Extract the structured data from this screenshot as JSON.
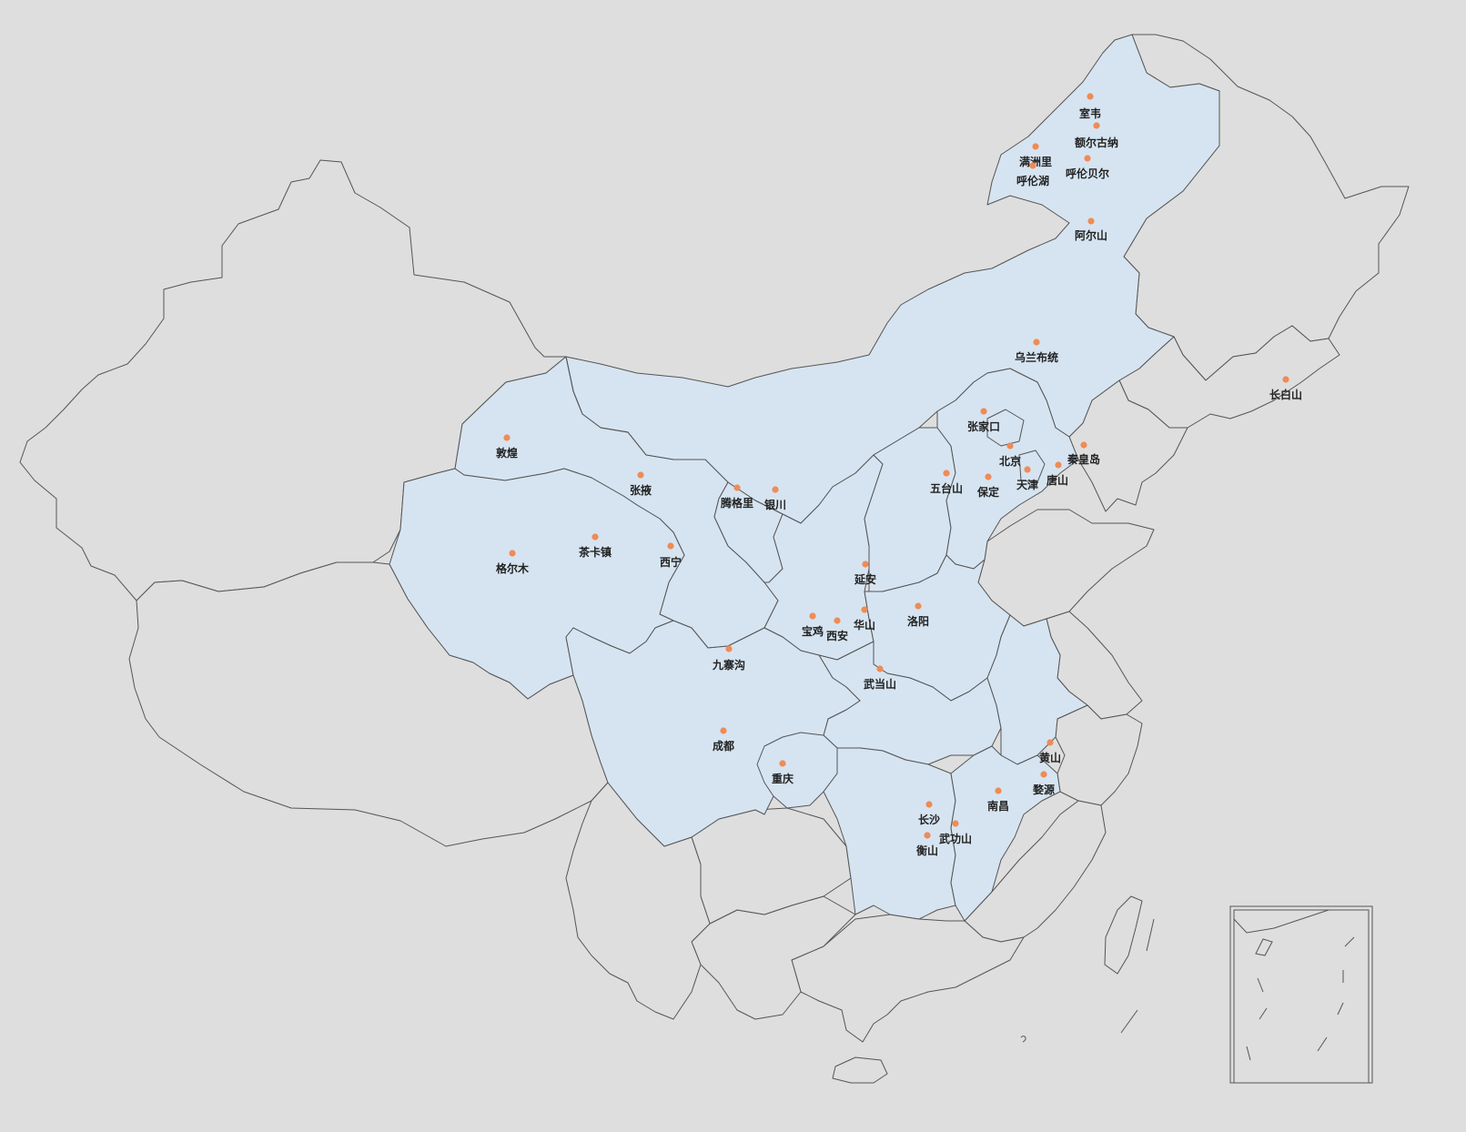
{
  "map": {
    "colors": {
      "background": "#dedede",
      "highlight_fill": "#d6e4f1",
      "border": "#555555",
      "marker": "#ef8b56",
      "label": "#222222"
    },
    "highlighted_regions": [
      "Inner Mongolia",
      "Gansu",
      "Qinghai",
      "Ningxia",
      "Shaanxi",
      "Shanxi",
      "Hebei",
      "Beijing",
      "Tianjin",
      "Henan",
      "Hubei",
      "Sichuan",
      "Chongqing",
      "Hunan",
      "Jiangxi",
      "Anhui"
    ],
    "cities": [
      {
        "id": "shiwei",
        "name": "室韦"
      },
      {
        "id": "erguna",
        "name": "额尔古纳"
      },
      {
        "id": "manzhouli",
        "name": "满洲里"
      },
      {
        "id": "hulunlake",
        "name": "呼伦湖"
      },
      {
        "id": "hulunbuir",
        "name": "呼伦贝尔"
      },
      {
        "id": "arxan",
        "name": "阿尔山"
      },
      {
        "id": "ulanbutong",
        "name": "乌兰布统"
      },
      {
        "id": "changbaishan",
        "name": "长白山"
      },
      {
        "id": "zhangjiakou",
        "name": "张家口"
      },
      {
        "id": "beijing",
        "name": "北京"
      },
      {
        "id": "qinhuangdao",
        "name": "秦皇岛"
      },
      {
        "id": "tangshan",
        "name": "唐山"
      },
      {
        "id": "tianjin",
        "name": "天津"
      },
      {
        "id": "baoding",
        "name": "保定"
      },
      {
        "id": "wutaishan",
        "name": "五台山"
      },
      {
        "id": "dunhuang",
        "name": "敦煌"
      },
      {
        "id": "zhangye",
        "name": "张掖"
      },
      {
        "id": "tenggeli",
        "name": "腾格里"
      },
      {
        "id": "yinchuan",
        "name": "银川"
      },
      {
        "id": "chakazhen",
        "name": "茶卡镇"
      },
      {
        "id": "xining",
        "name": "西宁"
      },
      {
        "id": "golmud",
        "name": "格尔木"
      },
      {
        "id": "yanan",
        "name": "延安"
      },
      {
        "id": "baoji",
        "name": "宝鸡"
      },
      {
        "id": "xian",
        "name": "西安"
      },
      {
        "id": "huashan",
        "name": "华山"
      },
      {
        "id": "luoyang",
        "name": "洛阳"
      },
      {
        "id": "jiuzhaigou",
        "name": "九寨沟"
      },
      {
        "id": "wudangshan",
        "name": "武当山"
      },
      {
        "id": "chengdu",
        "name": "成都"
      },
      {
        "id": "chongqing",
        "name": "重庆"
      },
      {
        "id": "huangshan",
        "name": "黄山"
      },
      {
        "id": "wuyuan",
        "name": "婺源"
      },
      {
        "id": "nanchang",
        "name": "南昌"
      },
      {
        "id": "changsha",
        "name": "长沙"
      },
      {
        "id": "wugongshan",
        "name": "武功山"
      },
      {
        "id": "hengshan",
        "name": "衡山"
      }
    ]
  }
}
